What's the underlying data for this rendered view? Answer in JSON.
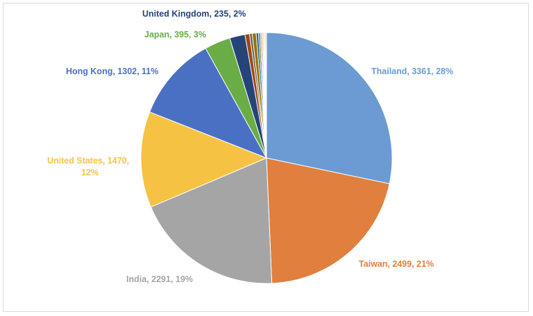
{
  "chart_data": {
    "type": "pie",
    "title": "",
    "slices": [
      {
        "label": "Thailand",
        "value": 3361,
        "pct": "28%",
        "color": "#6b9bd2"
      },
      {
        "label": "Taiwan",
        "value": 2499,
        "pct": "21%",
        "color": "#e07f3e"
      },
      {
        "label": "India",
        "value": 2291,
        "pct": "19%",
        "color": "#a5a5a5"
      },
      {
        "label": "United States",
        "value": 1470,
        "pct": "12%",
        "color": "#f6c244"
      },
      {
        "label": "Hong Kong",
        "value": 1302,
        "pct": "11%",
        "color": "#4a70c4"
      },
      {
        "label": "Japan",
        "value": 395,
        "pct": "3%",
        "color": "#6aac46"
      },
      {
        "label": "United Kingdom",
        "value": 235,
        "pct": "2%",
        "color": "#264478"
      },
      {
        "label": "",
        "value": 70,
        "color": "#9e480e"
      },
      {
        "label": "",
        "value": 40,
        "color": "#636363"
      },
      {
        "label": "",
        "value": 60,
        "color": "#997300"
      },
      {
        "label": "",
        "value": 35,
        "color": "#255e91"
      },
      {
        "label": "",
        "value": 25,
        "color": "#43682b"
      },
      {
        "label": "",
        "value": 20,
        "color": "#698ed0"
      },
      {
        "label": "",
        "value": 20,
        "color": "#f1975a"
      },
      {
        "label": "",
        "value": 15,
        "color": "#b7b7b7"
      },
      {
        "label": "",
        "value": 15,
        "color": "#ffcd33"
      },
      {
        "label": "",
        "value": 15,
        "color": "#8cc168"
      },
      {
        "label": "",
        "value": 12,
        "color": "#5a7ab8"
      }
    ],
    "data_labels": [
      {
        "text": "Thailand, 3361, 28%",
        "color": "#6b9bd2"
      },
      {
        "text": "Taiwan, 2499, 21%",
        "color": "#e07f3e"
      },
      {
        "text": "India, 2291, 19%",
        "color": "#a5a5a5"
      },
      {
        "text": "United States, 1470,",
        "text2": "12%",
        "color": "#f6c244"
      },
      {
        "text": "Hong Kong, 1302, 11%",
        "color": "#4a70c4"
      },
      {
        "text": "Japan, 395, 3%",
        "color": "#6aac46"
      },
      {
        "text": "United Kingdom, 235, 2%",
        "color": "#264478"
      }
    ]
  }
}
